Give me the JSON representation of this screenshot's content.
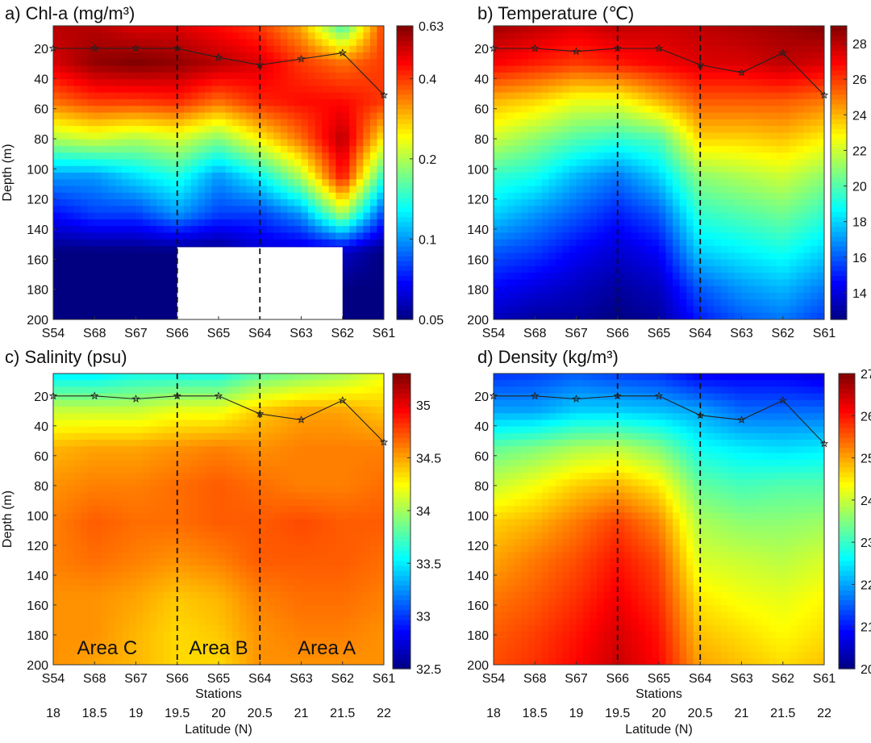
{
  "chart_data": [
    {
      "type": "heatmap",
      "id": "a",
      "title": "a) Chl-a (mg/m³)",
      "ylabel": "Depth (m)",
      "xlabel": "",
      "stations": [
        "S54",
        "S68",
        "S67",
        "S66",
        "S65",
        "S64",
        "S63",
        "S62",
        "S61"
      ],
      "yticks": [
        "20",
        "40",
        "60",
        "80",
        "100",
        "120",
        "140",
        "160",
        "180",
        "200"
      ],
      "ylim": [
        5,
        200
      ],
      "colorbar": {
        "ticks": [
          "0.05",
          "0.1",
          "0.2",
          "0.4",
          "0.63"
        ],
        "values": [
          0.05,
          0.1,
          0.2,
          0.4,
          0.63
        ],
        "scale": "log",
        "range": [
          0.05,
          0.63
        ]
      },
      "dividers": [
        "S66",
        "S64"
      ],
      "mixed_layer_depth": [
        20,
        20,
        20,
        20,
        26,
        31,
        27,
        23,
        51
      ],
      "masked_region": {
        "from_station": "S66",
        "to_station": "S62",
        "depth_from": 152,
        "depth_to": 200
      },
      "rows": [
        5,
        30,
        55,
        80,
        105,
        130,
        155,
        180,
        200
      ],
      "field": [
        [
          0.55,
          0.55,
          0.5,
          0.5,
          0.45,
          0.4,
          0.3,
          0.15,
          0.4
        ],
        [
          0.5,
          0.6,
          0.63,
          0.6,
          0.55,
          0.5,
          0.4,
          0.35,
          0.4
        ],
        [
          0.35,
          0.4,
          0.4,
          0.42,
          0.35,
          0.42,
          0.45,
          0.45,
          0.4
        ],
        [
          0.2,
          0.22,
          0.2,
          0.22,
          0.18,
          0.25,
          0.35,
          0.55,
          0.25
        ],
        [
          0.1,
          0.1,
          0.12,
          0.14,
          0.1,
          0.13,
          0.2,
          0.45,
          0.14
        ],
        [
          0.07,
          0.08,
          0.08,
          0.1,
          0.08,
          0.08,
          0.1,
          0.2,
          0.08
        ],
        [
          0.05,
          0.05,
          0.05,
          0.05,
          0.05,
          0.06,
          0.06,
          0.06,
          0.05
        ],
        [
          0.05,
          0.05,
          0.05,
          0.05,
          0.05,
          0.05,
          0.05,
          0.05,
          0.05
        ],
        [
          0.05,
          0.05,
          0.05,
          0.05,
          0.05,
          0.05,
          0.05,
          0.05,
          0.05
        ]
      ]
    },
    {
      "type": "heatmap",
      "id": "b",
      "title": "b) Temperature (℃)",
      "ylabel": "",
      "xlabel": "",
      "stations": [
        "S54",
        "S68",
        "S67",
        "S66",
        "S65",
        "S64",
        "S63",
        "S62",
        "S61"
      ],
      "yticks": [
        "20",
        "40",
        "60",
        "80",
        "100",
        "120",
        "140",
        "160",
        "180",
        "200"
      ],
      "ylim": [
        5,
        200
      ],
      "colorbar": {
        "ticks": [
          "14",
          "16",
          "18",
          "20",
          "22",
          "24",
          "26",
          "28"
        ],
        "values": [
          14,
          16,
          18,
          20,
          22,
          24,
          26,
          28
        ],
        "scale": "linear",
        "range": [
          12.5,
          29
        ]
      },
      "dividers": [
        "S66",
        "S64"
      ],
      "mixed_layer_depth": [
        20,
        20,
        22,
        20,
        20,
        31,
        36,
        23,
        51
      ],
      "rows": [
        5,
        30,
        55,
        80,
        105,
        130,
        155,
        180,
        200
      ],
      "field": [
        [
          28.5,
          28,
          27.5,
          28,
          27.8,
          28,
          28.3,
          28.5,
          29
        ],
        [
          27,
          26.5,
          26,
          26.5,
          27,
          27.5,
          27.5,
          28,
          27.5
        ],
        [
          24,
          23.5,
          22.5,
          22.5,
          24,
          25.5,
          25.5,
          25.5,
          25
        ],
        [
          22,
          21,
          20,
          19.5,
          20,
          23.5,
          23.5,
          23.8,
          23
        ],
        [
          19.5,
          19,
          17.5,
          16.5,
          18,
          21,
          21.5,
          22,
          21
        ],
        [
          18,
          17,
          16,
          15,
          16,
          19.5,
          20,
          20.5,
          19.5
        ],
        [
          16,
          15.5,
          14.5,
          13.8,
          14.5,
          18,
          18.5,
          19,
          18
        ],
        [
          14.5,
          14,
          13.5,
          13,
          13.5,
          16,
          17,
          17.5,
          16.5
        ],
        [
          13.5,
          13,
          13,
          12.5,
          13,
          15,
          16,
          16.5,
          15.5
        ]
      ]
    },
    {
      "type": "heatmap",
      "id": "c",
      "title": "c) Salinity (psu)",
      "ylabel": "Depth (m)",
      "xlabel": "Stations",
      "stations": [
        "S54",
        "S68",
        "S67",
        "S66",
        "S65",
        "S64",
        "S63",
        "S62",
        "S61"
      ],
      "yticks": [
        "20",
        "40",
        "60",
        "80",
        "100",
        "120",
        "140",
        "160",
        "180",
        "200"
      ],
      "ylim": [
        5,
        200
      ],
      "colorbar": {
        "ticks": [
          "32.5",
          "33",
          "33.5",
          "34",
          "34.5",
          "35"
        ],
        "values": [
          32.5,
          33,
          33.5,
          34,
          34.5,
          35
        ],
        "scale": "linear",
        "range": [
          32.5,
          35.3
        ]
      },
      "dividers": [
        "S66",
        "S64"
      ],
      "mixed_layer_depth": [
        20,
        20,
        22,
        20,
        20,
        32,
        36,
        23,
        51
      ],
      "latitude": {
        "label": "Latitude (N)",
        "ticks": [
          "18",
          "18.5",
          "19",
          "19.5",
          "20",
          "20.5",
          "21",
          "21.5",
          "22"
        ]
      },
      "areas": [
        "Area C",
        "Area B",
        "Area A"
      ],
      "rows": [
        5,
        30,
        55,
        80,
        105,
        130,
        155,
        180,
        200
      ],
      "field": [
        [
          33.5,
          33.5,
          33.6,
          33.6,
          33.6,
          33.8,
          33.9,
          34,
          34.2
        ],
        [
          34.1,
          34.1,
          34.1,
          34.2,
          34.2,
          34.4,
          34.5,
          34.5,
          34.4
        ],
        [
          34.45,
          34.5,
          34.5,
          34.55,
          34.6,
          34.55,
          34.6,
          34.6,
          34.6
        ],
        [
          34.55,
          34.6,
          34.6,
          34.65,
          34.7,
          34.65,
          34.6,
          34.6,
          34.65
        ],
        [
          34.6,
          34.7,
          34.65,
          34.65,
          34.7,
          34.7,
          34.75,
          34.7,
          34.7
        ],
        [
          34.6,
          34.65,
          34.6,
          34.55,
          34.6,
          34.7,
          34.7,
          34.7,
          34.65
        ],
        [
          34.55,
          34.55,
          34.5,
          34.4,
          34.45,
          34.6,
          34.65,
          34.65,
          34.6
        ],
        [
          34.55,
          34.55,
          34.45,
          34.35,
          34.4,
          34.55,
          34.6,
          34.6,
          34.55
        ],
        [
          34.55,
          34.5,
          34.45,
          34.35,
          34.35,
          34.55,
          34.55,
          34.55,
          34.55
        ]
      ]
    },
    {
      "type": "heatmap",
      "id": "d",
      "title": "d) Density (kg/m³)",
      "ylabel": "",
      "xlabel": "Stations",
      "stations": [
        "S54",
        "S68",
        "S67",
        "S66",
        "S65",
        "S64",
        "S63",
        "S62",
        "S61"
      ],
      "yticks": [
        "20",
        "40",
        "60",
        "80",
        "100",
        "120",
        "140",
        "160",
        "180",
        "200"
      ],
      "ylim": [
        5,
        200
      ],
      "colorbar": {
        "ticks": [
          "20",
          "21",
          "22",
          "23",
          "24",
          "25",
          "26",
          "27"
        ],
        "values": [
          20,
          21,
          22,
          23,
          24,
          25,
          26,
          27
        ],
        "scale": "linear",
        "range": [
          20,
          27
        ]
      },
      "dividers": [
        "S66",
        "S64"
      ],
      "mixed_layer_depth": [
        20,
        20,
        22,
        20,
        20,
        33,
        36,
        23,
        52
      ],
      "latitude": {
        "label": "Latitude (N)",
        "ticks": [
          "18",
          "18.5",
          "19",
          "19.5",
          "20",
          "20.5",
          "21",
          "21.5",
          "22"
        ]
      },
      "rows": [
        5,
        30,
        55,
        80,
        105,
        130,
        155,
        180,
        200
      ],
      "field": [
        [
          21.2,
          21.3,
          21.5,
          21.3,
          21.2,
          20.8,
          20.8,
          20.8,
          20.6
        ],
        [
          22,
          22,
          22.3,
          22.3,
          22.2,
          22,
          21.6,
          21.6,
          21.6
        ],
        [
          23.3,
          23.5,
          23.8,
          23.9,
          23.5,
          22.7,
          22.5,
          22.4,
          22.5
        ],
        [
          24,
          24.3,
          24.7,
          24.9,
          24.5,
          23.3,
          23.1,
          23.2,
          23.2
        ],
        [
          24.7,
          24.9,
          25.3,
          25.7,
          25.2,
          23.8,
          23.6,
          23.6,
          23.7
        ],
        [
          25,
          25.3,
          25.6,
          26,
          25.6,
          24.1,
          24.0,
          23.9,
          24.1
        ],
        [
          25.3,
          25.5,
          25.8,
          26.2,
          25.8,
          24.5,
          24.3,
          24.2,
          24.4
        ],
        [
          25.5,
          25.7,
          26,
          26.4,
          26,
          24.8,
          24.6,
          24.4,
          24.6
        ],
        [
          25.6,
          25.8,
          26.1,
          26.5,
          26.1,
          25,
          24.8,
          24.6,
          24.8
        ]
      ]
    }
  ]
}
